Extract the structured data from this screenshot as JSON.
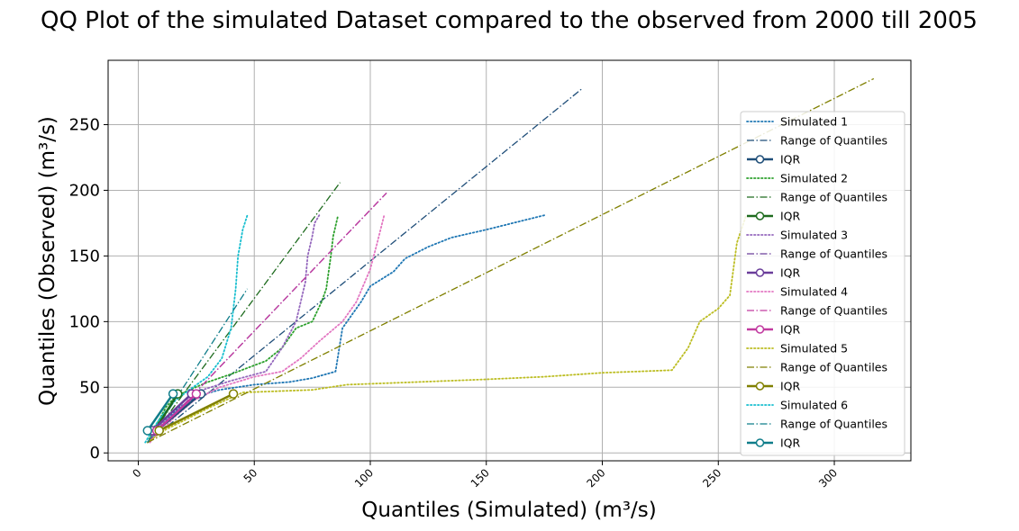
{
  "chart_data": {
    "type": "line",
    "title": "QQ Plot of the simulated Dataset compared to the observed from 2000 till 2005",
    "xlabel": "Quantiles (Simulated) (m³/s)",
    "ylabel": "Quantiles (Observed) (m³/s)",
    "xlim": [
      -13,
      333
    ],
    "ylim": [
      -6,
      299
    ],
    "xticks": [
      0,
      50,
      100,
      150,
      200,
      250,
      300
    ],
    "yticks": [
      0,
      50,
      100,
      150,
      200,
      250
    ],
    "grid": true,
    "legend_position": "right",
    "groups": [
      {
        "sim_label": "Simulated 1",
        "range_label": "Range of Quantiles",
        "iqr_label": "IQR",
        "sim_color": "#1f77b4",
        "range_color": "#1f4e79",
        "iqr_color": "#1f4e79",
        "sim": [
          [
            4,
            8
          ],
          [
            6,
            12
          ],
          [
            8,
            17
          ],
          [
            12,
            25
          ],
          [
            18,
            35
          ],
          [
            25,
            43
          ],
          [
            35,
            48
          ],
          [
            50,
            52
          ],
          [
            65,
            54
          ],
          [
            75,
            57
          ],
          [
            85,
            62
          ],
          [
            88,
            95
          ],
          [
            92,
            105
          ],
          [
            96,
            115
          ],
          [
            100,
            127
          ],
          [
            110,
            138
          ],
          [
            115,
            148
          ],
          [
            125,
            157
          ],
          [
            135,
            164
          ],
          [
            150,
            170
          ],
          [
            175,
            181
          ]
        ],
        "range": [
          [
            4,
            8
          ],
          [
            191,
            277
          ]
        ],
        "iqr": [
          [
            8,
            17
          ],
          [
            27,
            45
          ]
        ]
      },
      {
        "sim_label": "Simulated 2",
        "range_label": "Range of Quantiles",
        "iqr_label": "IQR",
        "sim_color": "#2ca02c",
        "range_color": "#1e6b1e",
        "iqr_color": "#1e6b1e",
        "sim": [
          [
            4,
            8
          ],
          [
            6,
            15
          ],
          [
            8,
            22
          ],
          [
            12,
            35
          ],
          [
            16,
            43
          ],
          [
            22,
            48
          ],
          [
            30,
            54
          ],
          [
            40,
            60
          ],
          [
            55,
            70
          ],
          [
            62,
            80
          ],
          [
            68,
            95
          ],
          [
            75,
            100
          ],
          [
            79,
            115
          ],
          [
            81,
            125
          ],
          [
            83,
            150
          ],
          [
            84,
            165
          ],
          [
            86,
            180
          ]
        ],
        "range": [
          [
            4,
            8
          ],
          [
            87,
            206
          ]
        ],
        "iqr": [
          [
            7,
            17
          ],
          [
            17,
            45
          ]
        ]
      },
      {
        "sim_label": "Simulated 3",
        "range_label": "Range of Quantiles",
        "iqr_label": "IQR",
        "sim_color": "#9467bd",
        "range_color": "#6a3d9a",
        "iqr_color": "#6a3d9a",
        "sim": [
          [
            4,
            8
          ],
          [
            6,
            13
          ],
          [
            8,
            18
          ],
          [
            14,
            30
          ],
          [
            20,
            40
          ],
          [
            26,
            47
          ],
          [
            40,
            55
          ],
          [
            55,
            62
          ],
          [
            62,
            80
          ],
          [
            68,
            100
          ],
          [
            72,
            130
          ],
          [
            73,
            150
          ],
          [
            75,
            165
          ],
          [
            76,
            175
          ],
          [
            78,
            181
          ]
        ],
        "range": [
          [
            4,
            8
          ],
          [
            107,
            198
          ]
        ],
        "iqr": [
          [
            6,
            17
          ],
          [
            23,
            45
          ]
        ]
      },
      {
        "sim_label": "Simulated 4",
        "range_label": "Range of Quantiles",
        "iqr_label": "IQR",
        "sim_color": "#e377c2",
        "range_color": "#c23aa0",
        "iqr_color": "#c23aa0",
        "sim": [
          [
            5,
            8
          ],
          [
            7,
            12
          ],
          [
            10,
            17
          ],
          [
            16,
            28
          ],
          [
            24,
            40
          ],
          [
            35,
            50
          ],
          [
            50,
            58
          ],
          [
            62,
            62
          ],
          [
            70,
            72
          ],
          [
            78,
            85
          ],
          [
            88,
            100
          ],
          [
            94,
            115
          ],
          [
            100,
            140
          ],
          [
            103,
            160
          ],
          [
            106,
            181
          ]
        ],
        "range": [
          [
            4,
            8
          ],
          [
            107,
            198
          ]
        ],
        "iqr": [
          [
            8,
            17
          ],
          [
            25,
            45
          ]
        ]
      },
      {
        "sim_label": "Simulated 5",
        "range_label": "Range of Quantiles",
        "iqr_label": "IQR",
        "sim_color": "#bcbd22",
        "range_color": "#808000",
        "iqr_color": "#808000",
        "sim": [
          [
            4,
            8
          ],
          [
            7,
            12
          ],
          [
            12,
            18
          ],
          [
            20,
            25
          ],
          [
            30,
            34
          ],
          [
            45,
            46
          ],
          [
            75,
            48
          ],
          [
            90,
            52
          ],
          [
            120,
            54
          ],
          [
            150,
            56
          ],
          [
            175,
            58
          ],
          [
            200,
            61
          ],
          [
            215,
            62
          ],
          [
            230,
            63
          ],
          [
            237,
            80
          ],
          [
            242,
            100
          ],
          [
            250,
            110
          ],
          [
            255,
            120
          ],
          [
            258,
            160
          ],
          [
            262,
            181
          ]
        ],
        "range": [
          [
            4,
            8
          ],
          [
            317,
            285
          ]
        ],
        "iqr": [
          [
            9,
            17
          ],
          [
            41,
            45
          ]
        ]
      },
      {
        "sim_label": "Simulated 6",
        "range_label": "Range of Quantiles",
        "iqr_label": "IQR",
        "sim_color": "#17becf",
        "range_color": "#0f7d8a",
        "iqr_color": "#0f7d8a",
        "sim": [
          [
            3,
            8
          ],
          [
            5,
            14
          ],
          [
            7,
            20
          ],
          [
            10,
            28
          ],
          [
            16,
            40
          ],
          [
            22,
            48
          ],
          [
            30,
            58
          ],
          [
            36,
            72
          ],
          [
            40,
            95
          ],
          [
            42,
            125
          ],
          [
            43,
            150
          ],
          [
            45,
            170
          ],
          [
            47,
            181
          ]
        ],
        "range": [
          [
            4,
            8
          ],
          [
            47,
            125
          ]
        ],
        "iqr": [
          [
            4,
            17
          ],
          [
            15,
            45
          ]
        ]
      }
    ]
  }
}
